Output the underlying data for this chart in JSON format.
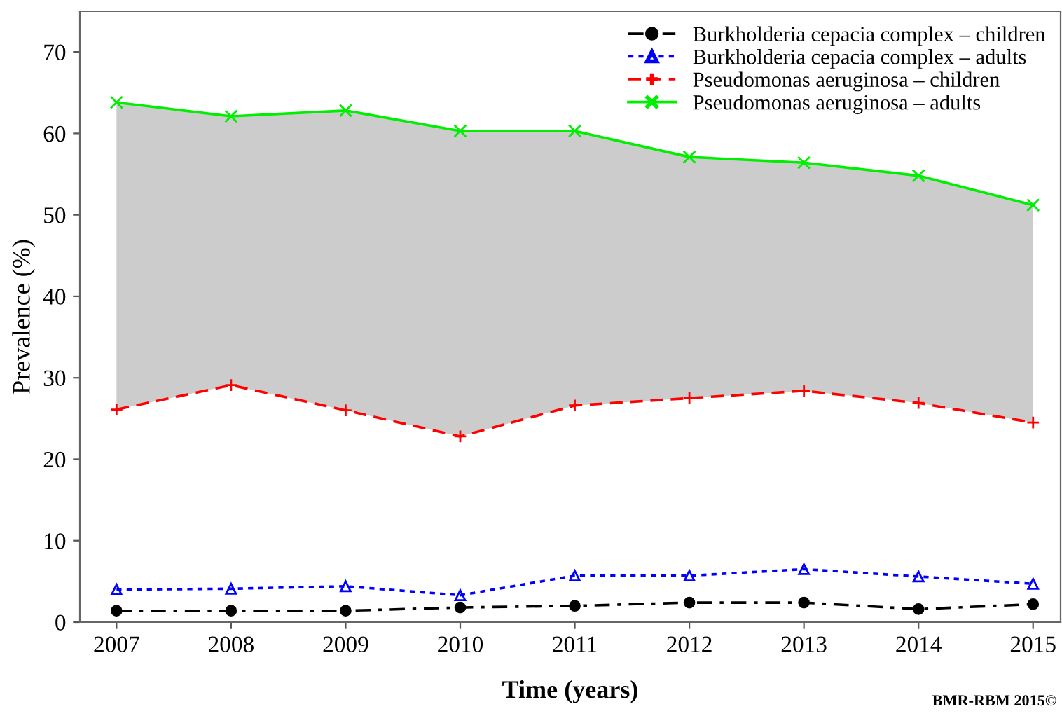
{
  "chart_data": {
    "type": "line",
    "xlabel": "Time (years)",
    "ylabel": "Prevalence (%)",
    "x": [
      2007,
      2008,
      2009,
      2010,
      2011,
      2012,
      2013,
      2014,
      2015
    ],
    "xlim": [
      2006.68,
      2015.24
    ],
    "xticks": [
      2007,
      2008,
      2009,
      2010,
      2011,
      2012,
      2013,
      2014,
      2015
    ],
    "ylim": [
      0,
      75
    ],
    "yticks": [
      0,
      10,
      20,
      30,
      40,
      50,
      60,
      70
    ],
    "grid": false,
    "legend": "top right",
    "series": [
      {
        "name": "Burkholderia cepacia complex – children",
        "color": "#000000",
        "marker": "circle",
        "line_style": "dashdot",
        "values": [
          1.4,
          1.4,
          1.4,
          1.8,
          2.0,
          2.4,
          2.4,
          1.6,
          2.2
        ]
      },
      {
        "name": "Burkholderia cepacia complex – adults",
        "color": "#0000ff",
        "marker": "triangle",
        "line_style": "dotted",
        "values": [
          4.0,
          4.1,
          4.4,
          3.3,
          5.7,
          5.7,
          6.5,
          5.6,
          4.7
        ]
      },
      {
        "name": "Pseudomonas aeruginosa – children",
        "color": "#ff0000",
        "marker": "plus",
        "line_style": "dashed",
        "values": [
          26.1,
          29.1,
          26.0,
          22.8,
          26.6,
          27.5,
          28.4,
          26.9,
          24.5
        ]
      },
      {
        "name": "Pseudomonas aeruginosa – adults",
        "color": "#00ee00",
        "marker": "cross",
        "line_style": "solid",
        "values": [
          63.8,
          62.1,
          62.8,
          60.3,
          60.3,
          57.1,
          56.4,
          54.8,
          51.2
        ],
        "lower": [
          26.1,
          29.1,
          26.0,
          22.8,
          26.6,
          27.5,
          28.4,
          26.9,
          24.5
        ],
        "upper": [
          63.8,
          62.1,
          62.8,
          60.3,
          60.3,
          57.1,
          56.4,
          54.8,
          51.2
        ]
      }
    ],
    "annotations": [
      "BMR-RBM 2015©"
    ]
  }
}
